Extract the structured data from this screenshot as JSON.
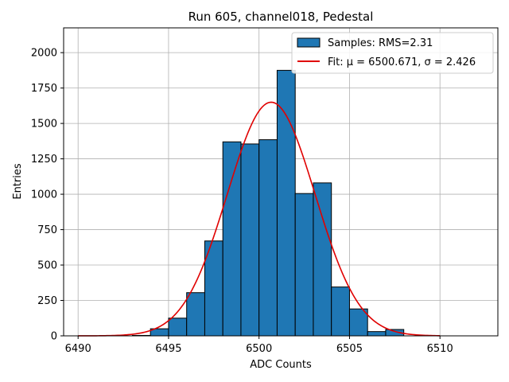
{
  "chart_data": {
    "type": "bar",
    "title": "Run 605, channel018, Pedestal",
    "xlabel": "ADC Counts",
    "ylabel": "Entries",
    "xlim": [
      6489.2,
      6513.2
    ],
    "ylim": [
      0,
      2175
    ],
    "xticks": [
      6490,
      6495,
      6500,
      6505,
      6510
    ],
    "yticks": [
      0,
      250,
      500,
      750,
      1000,
      1250,
      1500,
      1750,
      2000
    ],
    "grid": true,
    "legend_position": "top-right",
    "bar_color": "#1f77b4",
    "fit_color": "#e00000",
    "histogram": {
      "label": "Samples: RMS=2.31",
      "bin_edges": [
        6490,
        6491,
        6492,
        6493,
        6494,
        6495,
        6496,
        6497,
        6498,
        6499,
        6500,
        6501,
        6502,
        6503,
        6504,
        6505,
        6506,
        6507,
        6508,
        6509,
        6510
      ],
      "values": [
        0,
        0,
        0,
        3,
        50,
        125,
        305,
        670,
        1370,
        1355,
        1385,
        1875,
        1005,
        1080,
        345,
        190,
        30,
        45,
        0,
        0
      ]
    },
    "fit": {
      "label": "Fit: μ = 6500.671, σ = 2.426",
      "mu": 6500.671,
      "sigma": 2.426,
      "amplitude": 1650,
      "x_range": [
        6490,
        6510
      ]
    }
  }
}
